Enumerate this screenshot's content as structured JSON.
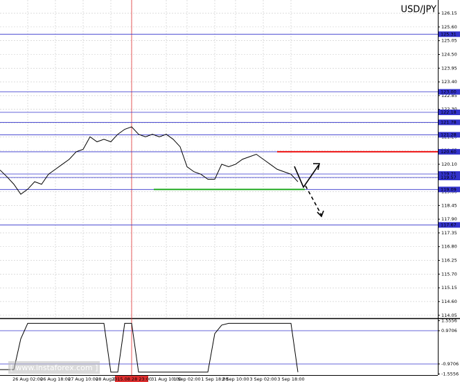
{
  "chart_data": [
    {
      "type": "line",
      "title": "USD/JPY",
      "categories": [
        null,
        null,
        null,
        null,
        "26 Aug 02:00",
        null,
        null,
        null,
        "26 Aug 18:00",
        null,
        null,
        null,
        "27 Aug 10:00",
        null,
        null,
        null,
        "28 Aug 02:00",
        null,
        null,
        "2015.08.28 23:00",
        null,
        null,
        null,
        null,
        "31 Aug 10:00",
        null,
        null,
        "1 Sep 02:00",
        null,
        null,
        null,
        "1 Sep 18:00",
        null,
        null,
        "2 Sep 10:00",
        null,
        null,
        null,
        "3 Sep 02:00",
        null,
        null,
        null,
        "3 Sep 18:00",
        null
      ],
      "series": [
        {
          "name": "USD/JPY",
          "color": "#000000",
          "values": [
            119.87,
            119.6,
            119.3,
            118.9,
            119.1,
            119.4,
            119.3,
            119.7,
            119.9,
            120.1,
            120.3,
            120.6,
            120.7,
            121.2,
            121.0,
            121.1,
            121.0,
            121.3,
            121.5,
            121.6,
            121.3,
            121.2,
            121.3,
            121.2,
            121.3,
            121.1,
            120.8,
            120.0,
            119.8,
            119.7,
            119.5,
            119.5,
            120.1,
            120.0,
            120.1,
            120.3,
            120.4,
            120.5,
            120.3,
            120.1,
            119.9,
            119.8,
            119.7,
            119.4
          ]
        }
      ],
      "ylim": [
        113.96,
        126.68
      ],
      "yticks": [
        126.15,
        {
          "value": 125.6,
          "label": "125.60"
        },
        125.05,
        {
          "value": 124.5,
          "label": "124.50"
        },
        123.95,
        {
          "value": 123.4,
          "label": "123.40"
        },
        122.85,
        {
          "value": 122.3,
          "label": "122.30"
        },
        121.75,
        {
          "value": 121.2,
          "label": "121.20"
        },
        120.65,
        {
          "value": 120.1,
          "label": "120.10"
        },
        119.55,
        {
          "value": 119,
          "label": "119.00"
        },
        118.45,
        {
          "value": 117.9,
          "label": "117.90"
        },
        117.35,
        {
          "value": 116.8,
          "label": "116.80"
        },
        116.25,
        {
          "value": 115.7,
          "label": "115.70"
        },
        115.15,
        {
          "value": 114.6,
          "label": "114.60"
        },
        114.05
      ],
      "levels": [
        125.31,
        {
          "value": 123,
          "label": "123.00"
        },
        122.18,
        121.78,
        121.28,
        {
          "value": 120.6,
          "label": "120.60"
        },
        119.71,
        119.57,
        119.09,
        117.67
      ],
      "grid": true
    },
    {
      "type": "line",
      "series": [
        {
          "name": "Indicator",
          "color": "#000000",
          "values": [
            -1.3,
            -1.3,
            -1.3,
            0.5,
            1.4,
            1.4,
            1.4,
            1.4,
            1.4,
            1.4,
            1.4,
            1.4,
            1.4,
            1.4,
            1.4,
            1.4,
            -1.45,
            -1.45,
            1.4,
            1.4,
            -1.45,
            -1.45,
            -1.45,
            -1.45,
            -1.45,
            -1.45,
            -1.45,
            -1.45,
            -1.45,
            -1.45,
            -1.45,
            0.8,
            1.3,
            1.4,
            1.4,
            1.4,
            1.4,
            1.4,
            1.4,
            1.4,
            1.4,
            1.4,
            1.4,
            -1.45
          ]
        }
      ],
      "ylim": [
        -1.62,
        1.62
      ],
      "yticks": [
        1.5556,
        0.9706,
        -0.9706,
        -1.5556
      ]
    }
  ],
  "watermark": "[ www.instaforex.com ]"
}
